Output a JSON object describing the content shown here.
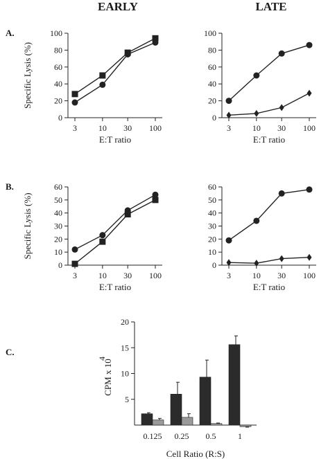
{
  "figure": {
    "col_titles": [
      "EARLY",
      "LATE"
    ],
    "panel_letters": [
      "A.",
      "B.",
      "C."
    ]
  },
  "chart_data": [
    {
      "id": "A-early",
      "type": "line",
      "title": "EARLY",
      "panel": "A.",
      "x_scale": "log",
      "categories": [
        "3",
        "10",
        "30",
        "100"
      ],
      "x": [
        3,
        10,
        30,
        100
      ],
      "ylabel": "Specific Lysis (%)",
      "xlabel": "E:T ratio",
      "ylim": [
        0,
        100
      ],
      "yticks": [
        "0",
        "20",
        "40",
        "60",
        "80",
        "100"
      ],
      "series": [
        {
          "marker": "square",
          "values": [
            28,
            50,
            77,
            94
          ]
        },
        {
          "marker": "circle",
          "values": [
            18,
            39,
            75,
            89
          ]
        }
      ]
    },
    {
      "id": "A-late",
      "type": "line",
      "title": "LATE",
      "panel": "",
      "x_scale": "log",
      "categories": [
        "3",
        "10",
        "30",
        "100"
      ],
      "x": [
        3,
        10,
        30,
        100
      ],
      "ylabel": "",
      "xlabel": "E:T ratio",
      "ylim": [
        0,
        100
      ],
      "yticks": [
        "0",
        "20",
        "40",
        "60",
        "80",
        "100"
      ],
      "series": [
        {
          "marker": "circle",
          "values": [
            20,
            50,
            76,
            86
          ]
        },
        {
          "marker": "diamond",
          "values": [
            3,
            5,
            12,
            29
          ]
        }
      ]
    },
    {
      "id": "B-early",
      "type": "line",
      "title": "",
      "panel": "B.",
      "x_scale": "log",
      "categories": [
        "3",
        "10",
        "30",
        "100"
      ],
      "x": [
        3,
        10,
        30,
        100
      ],
      "ylabel": "Specific Lysis (%)",
      "xlabel": "E:T ratio",
      "ylim": [
        0,
        60
      ],
      "yticks": [
        "0",
        "10",
        "20",
        "30",
        "40",
        "50",
        "60"
      ],
      "series": [
        {
          "marker": "circle",
          "values": [
            12,
            23,
            42,
            54
          ]
        },
        {
          "marker": "square",
          "values": [
            1,
            18,
            39,
            50
          ]
        }
      ]
    },
    {
      "id": "B-late",
      "type": "line",
      "title": "",
      "panel": "",
      "x_scale": "log",
      "categories": [
        "3",
        "10",
        "30",
        "100"
      ],
      "x": [
        3,
        10,
        30,
        100
      ],
      "ylabel": "",
      "xlabel": "E:T ratio",
      "ylim": [
        0,
        60
      ],
      "yticks": [
        "0",
        "10",
        "20",
        "30",
        "40",
        "50",
        "60"
      ],
      "series": [
        {
          "marker": "circle",
          "values": [
            19,
            34,
            55,
            58
          ]
        },
        {
          "marker": "diamond",
          "values": [
            2,
            1.5,
            5,
            6
          ]
        }
      ]
    },
    {
      "id": "C",
      "type": "bar",
      "title": "",
      "panel": "C.",
      "categories": [
        "0.125",
        "0.25",
        "0.5",
        "1"
      ],
      "xlabel": "Cell Ratio (R:S)",
      "ylabel": "CPM x 10",
      "ylabel_exponent": "4",
      "ylim": [
        0,
        20
      ],
      "yticks": [
        "5",
        "10",
        "15",
        "20"
      ],
      "series": [
        {
          "color": "#2b2b2b",
          "values": [
            2.2,
            6.0,
            9.3,
            15.6
          ],
          "errors": [
            0.2,
            2.3,
            3.3,
            1.7
          ]
        },
        {
          "color": "#9a9a9a",
          "values": [
            1.0,
            1.5,
            0.3,
            -0.3
          ],
          "errors": [
            0.3,
            0.7,
            0.1,
            0.1
          ]
        }
      ]
    }
  ]
}
